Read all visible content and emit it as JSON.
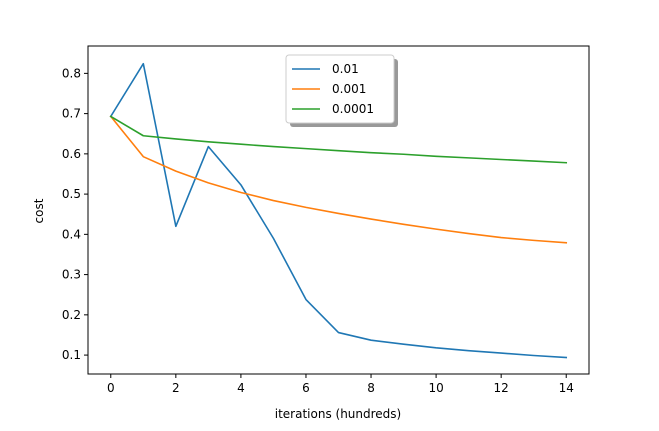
{
  "chart_data": {
    "type": "line",
    "title": "",
    "xlabel": "iterations (hundreds)",
    "ylabel": "cost",
    "xlim": [
      -0.7,
      14.7
    ],
    "ylim": [
      0.053,
      0.868
    ],
    "xticks": [
      0,
      2,
      4,
      6,
      8,
      10,
      12,
      14
    ],
    "yticks": [
      0.1,
      0.2,
      0.3,
      0.4,
      0.5,
      0.6,
      0.7,
      0.8
    ],
    "grid": false,
    "legend_position": "top-center",
    "x": [
      0,
      1,
      2,
      3,
      4,
      5,
      6,
      7,
      8,
      9,
      10,
      11,
      12,
      13,
      14
    ],
    "series": [
      {
        "name": "0.01",
        "color": "#1f77b4",
        "values": [
          0.693,
          0.824,
          0.42,
          0.618,
          0.523,
          0.39,
          0.238,
          0.156,
          0.137,
          0.127,
          0.118,
          0.111,
          0.105,
          0.099,
          0.094
        ]
      },
      {
        "name": "0.001",
        "color": "#ff7f0e",
        "values": [
          0.693,
          0.593,
          0.557,
          0.528,
          0.504,
          0.484,
          0.467,
          0.452,
          0.438,
          0.425,
          0.413,
          0.402,
          0.392,
          0.385,
          0.379
        ]
      },
      {
        "name": "0.0001",
        "color": "#2ca02c",
        "values": [
          0.693,
          0.645,
          0.637,
          0.63,
          0.624,
          0.618,
          0.613,
          0.608,
          0.603,
          0.599,
          0.594,
          0.59,
          0.586,
          0.582,
          0.578
        ]
      }
    ]
  }
}
